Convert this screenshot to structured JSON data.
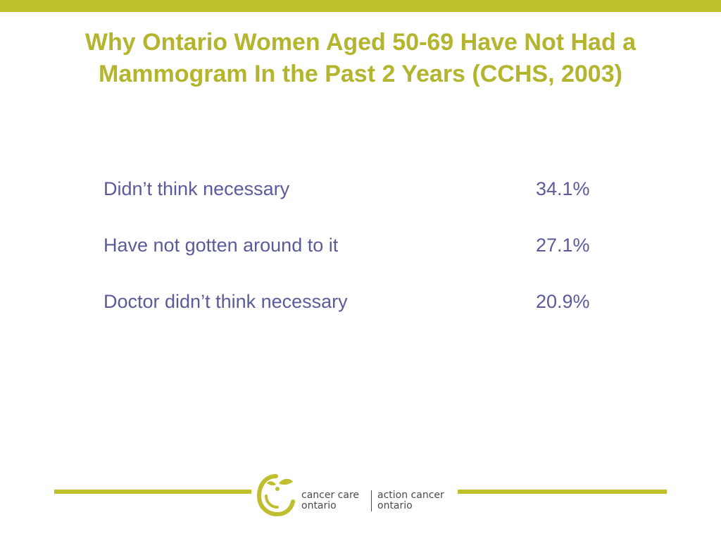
{
  "slide": {
    "title": "Why Ontario Women Aged 50-69 Have Not Had a Mammogram In the Past 2 Years (CCHS, 2003)",
    "items": [
      {
        "label": "Didn’t think necessary",
        "value": "34.1%"
      },
      {
        "label": "Have not gotten around to it",
        "value": "27.1%"
      },
      {
        "label": "Doctor didn’t think necessary",
        "value": "20.9%"
      }
    ]
  },
  "footer": {
    "logo": {
      "left_line1": "cancer care",
      "left_line2": "ontario",
      "right_line1": "action cancer",
      "right_line2": "ontario"
    }
  },
  "colors": {
    "accent": "#bfbf2e",
    "title": "#b2b52d",
    "body_text": "#5b5b9c"
  }
}
